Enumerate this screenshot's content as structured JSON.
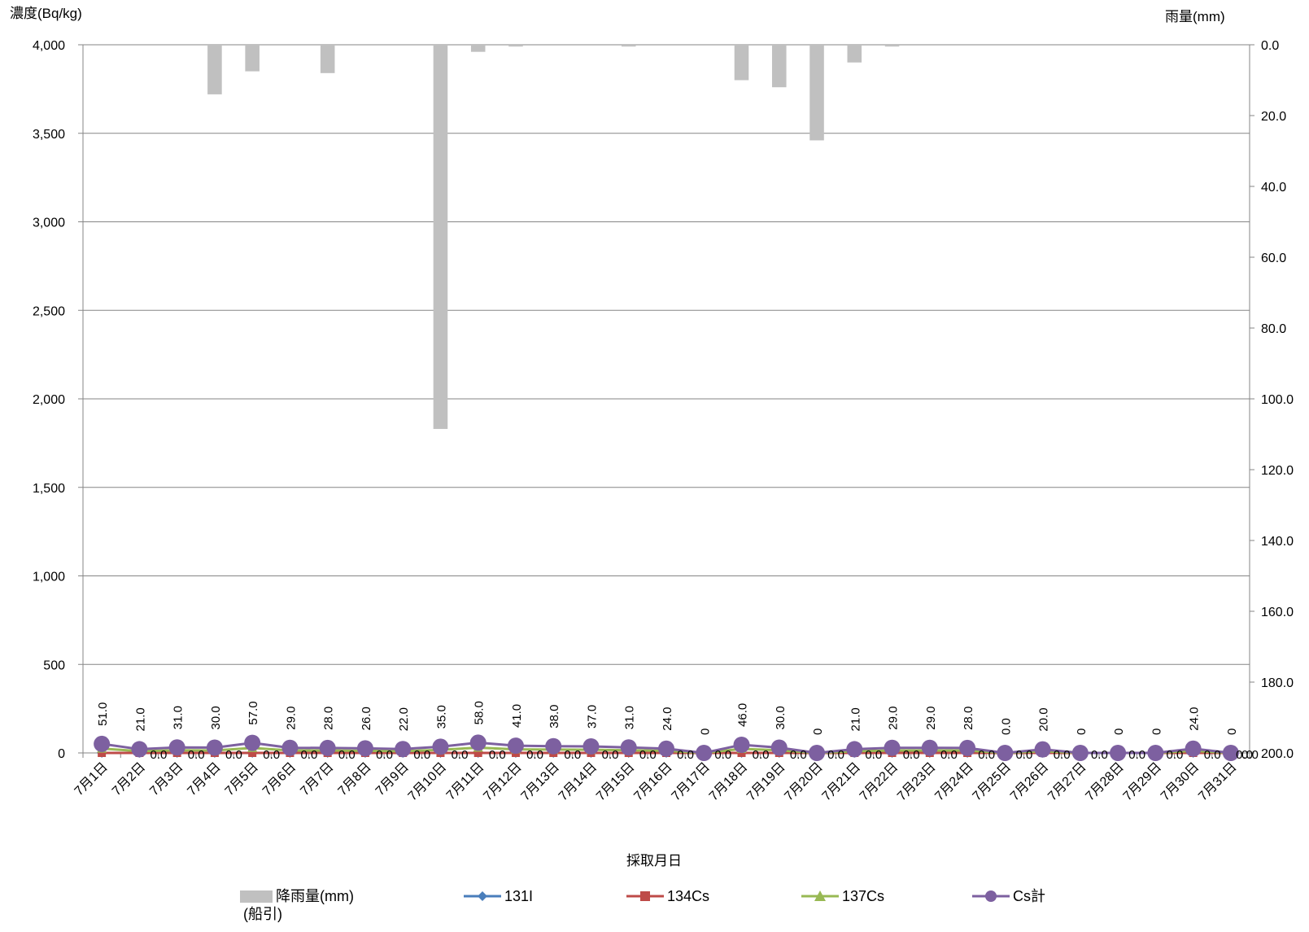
{
  "chart_data": {
    "type": "bar+line",
    "left_axis_title": "濃度(Bq/kg)",
    "right_axis_title": "雨量(mm)",
    "x_axis_title": "採取月日",
    "left_ylim": [
      0,
      4000
    ],
    "left_ticks": [
      "0",
      "500",
      "1,000",
      "1,500",
      "2,000",
      "2,500",
      "3,000",
      "3,500",
      "4,000"
    ],
    "right_ylim": [
      0,
      200
    ],
    "right_inverted": true,
    "right_ticks": [
      "0.0",
      "20.0",
      "40.0",
      "60.0",
      "80.0",
      "100.0",
      "120.0",
      "140.0",
      "160.0",
      "180.0",
      "200.0"
    ],
    "grid": true,
    "categories": [
      "7月1日",
      "7月2日",
      "7月3日",
      "7月4日",
      "7月5日",
      "7月6日",
      "7月7日",
      "7月8日",
      "7月9日",
      "7月10日",
      "7月11日",
      "7月12日",
      "7月13日",
      "7月14日",
      "7月15日",
      "7月16日",
      "7月17日",
      "7月18日",
      "7月19日",
      "7月20日",
      "7月21日",
      "7月22日",
      "7月23日",
      "7月24日",
      "7月25日",
      "7月26日",
      "7月27日",
      "7月28日",
      "7月29日",
      "7月30日",
      "7月31日"
    ],
    "rainfall": {
      "name": "降雨量(mm)\n(船引)",
      "color": "#c0c0c0",
      "values": [
        0,
        0,
        0,
        14,
        7.5,
        0,
        8,
        0,
        0,
        108.5,
        2,
        0.5,
        0,
        0,
        0.5,
        0,
        0,
        10,
        12,
        27,
        5,
        0.5,
        0,
        0,
        0,
        0,
        0,
        0,
        0,
        0,
        0
      ]
    },
    "series": [
      {
        "name": "131I",
        "color": "#4a7ebb",
        "marker": "diamond",
        "values": [
          0,
          0,
          0,
          0,
          0,
          0,
          0,
          0,
          0,
          0,
          0,
          0,
          0,
          0,
          0,
          0,
          0,
          0,
          0,
          0,
          0,
          0,
          0,
          0,
          0,
          0,
          0,
          0,
          0,
          0,
          0
        ]
      },
      {
        "name": "134Cs",
        "color": "#be4b48",
        "marker": "square",
        "values": [
          0,
          0,
          0,
          0,
          0,
          0,
          0,
          0,
          0,
          0,
          0,
          0,
          0,
          0,
          0,
          0,
          0,
          0,
          0,
          0,
          0,
          0,
          0,
          0,
          0,
          0,
          0,
          0,
          0,
          0,
          0
        ]
      },
      {
        "name": "137Cs",
        "color": "#98b954",
        "marker": "triangle",
        "values": [
          25,
          10,
          15,
          14,
          28,
          14,
          14,
          12,
          10,
          17,
          30,
          20,
          19,
          18,
          15,
          12,
          0,
          23,
          15,
          0,
          10,
          14,
          14,
          14,
          0,
          10,
          0,
          0,
          0,
          12,
          0
        ]
      },
      {
        "name": "Cs計",
        "color": "#7d60a0",
        "marker": "circle",
        "values": [
          51,
          21,
          31,
          30,
          57,
          29,
          28,
          26,
          22,
          35,
          58,
          41,
          38,
          37,
          31,
          24,
          0,
          46,
          30,
          0,
          21,
          29,
          29,
          28,
          0,
          20,
          0,
          0,
          0,
          24,
          0
        ]
      }
    ],
    "data_labels_total": [
      "51.0",
      "21.0",
      "31.0",
      "30.0",
      "57.0",
      "29.0",
      "28.0",
      "26.0",
      "22.0",
      "35.0",
      "58.0",
      "41.0",
      "38.0",
      "37.0",
      "31.0",
      "24.0",
      "0",
      "46.0",
      "30.0",
      "0",
      "21.0",
      "29.0",
      "29.0",
      "28.0",
      "0.0",
      "20.0",
      "0",
      "0",
      "0",
      "24.0",
      "0"
    ],
    "data_labels_134": [
      "",
      "0.0",
      "0.0",
      "0.0",
      "0.0",
      "0.0",
      "0.0",
      "0.0",
      "0.0",
      "0.0",
      "0.0",
      "0.0",
      "0.0",
      "0.0",
      "0.0",
      "0.0",
      "0.0",
      "0.0",
      "0.0",
      "0.0",
      "0.0",
      "0.0",
      "0.0",
      "0.0",
      "0.0",
      "0.0",
      "0.0",
      "0.0",
      "0.0",
      "0.0",
      "0.0"
    ],
    "right_edge_label": "0.0"
  }
}
